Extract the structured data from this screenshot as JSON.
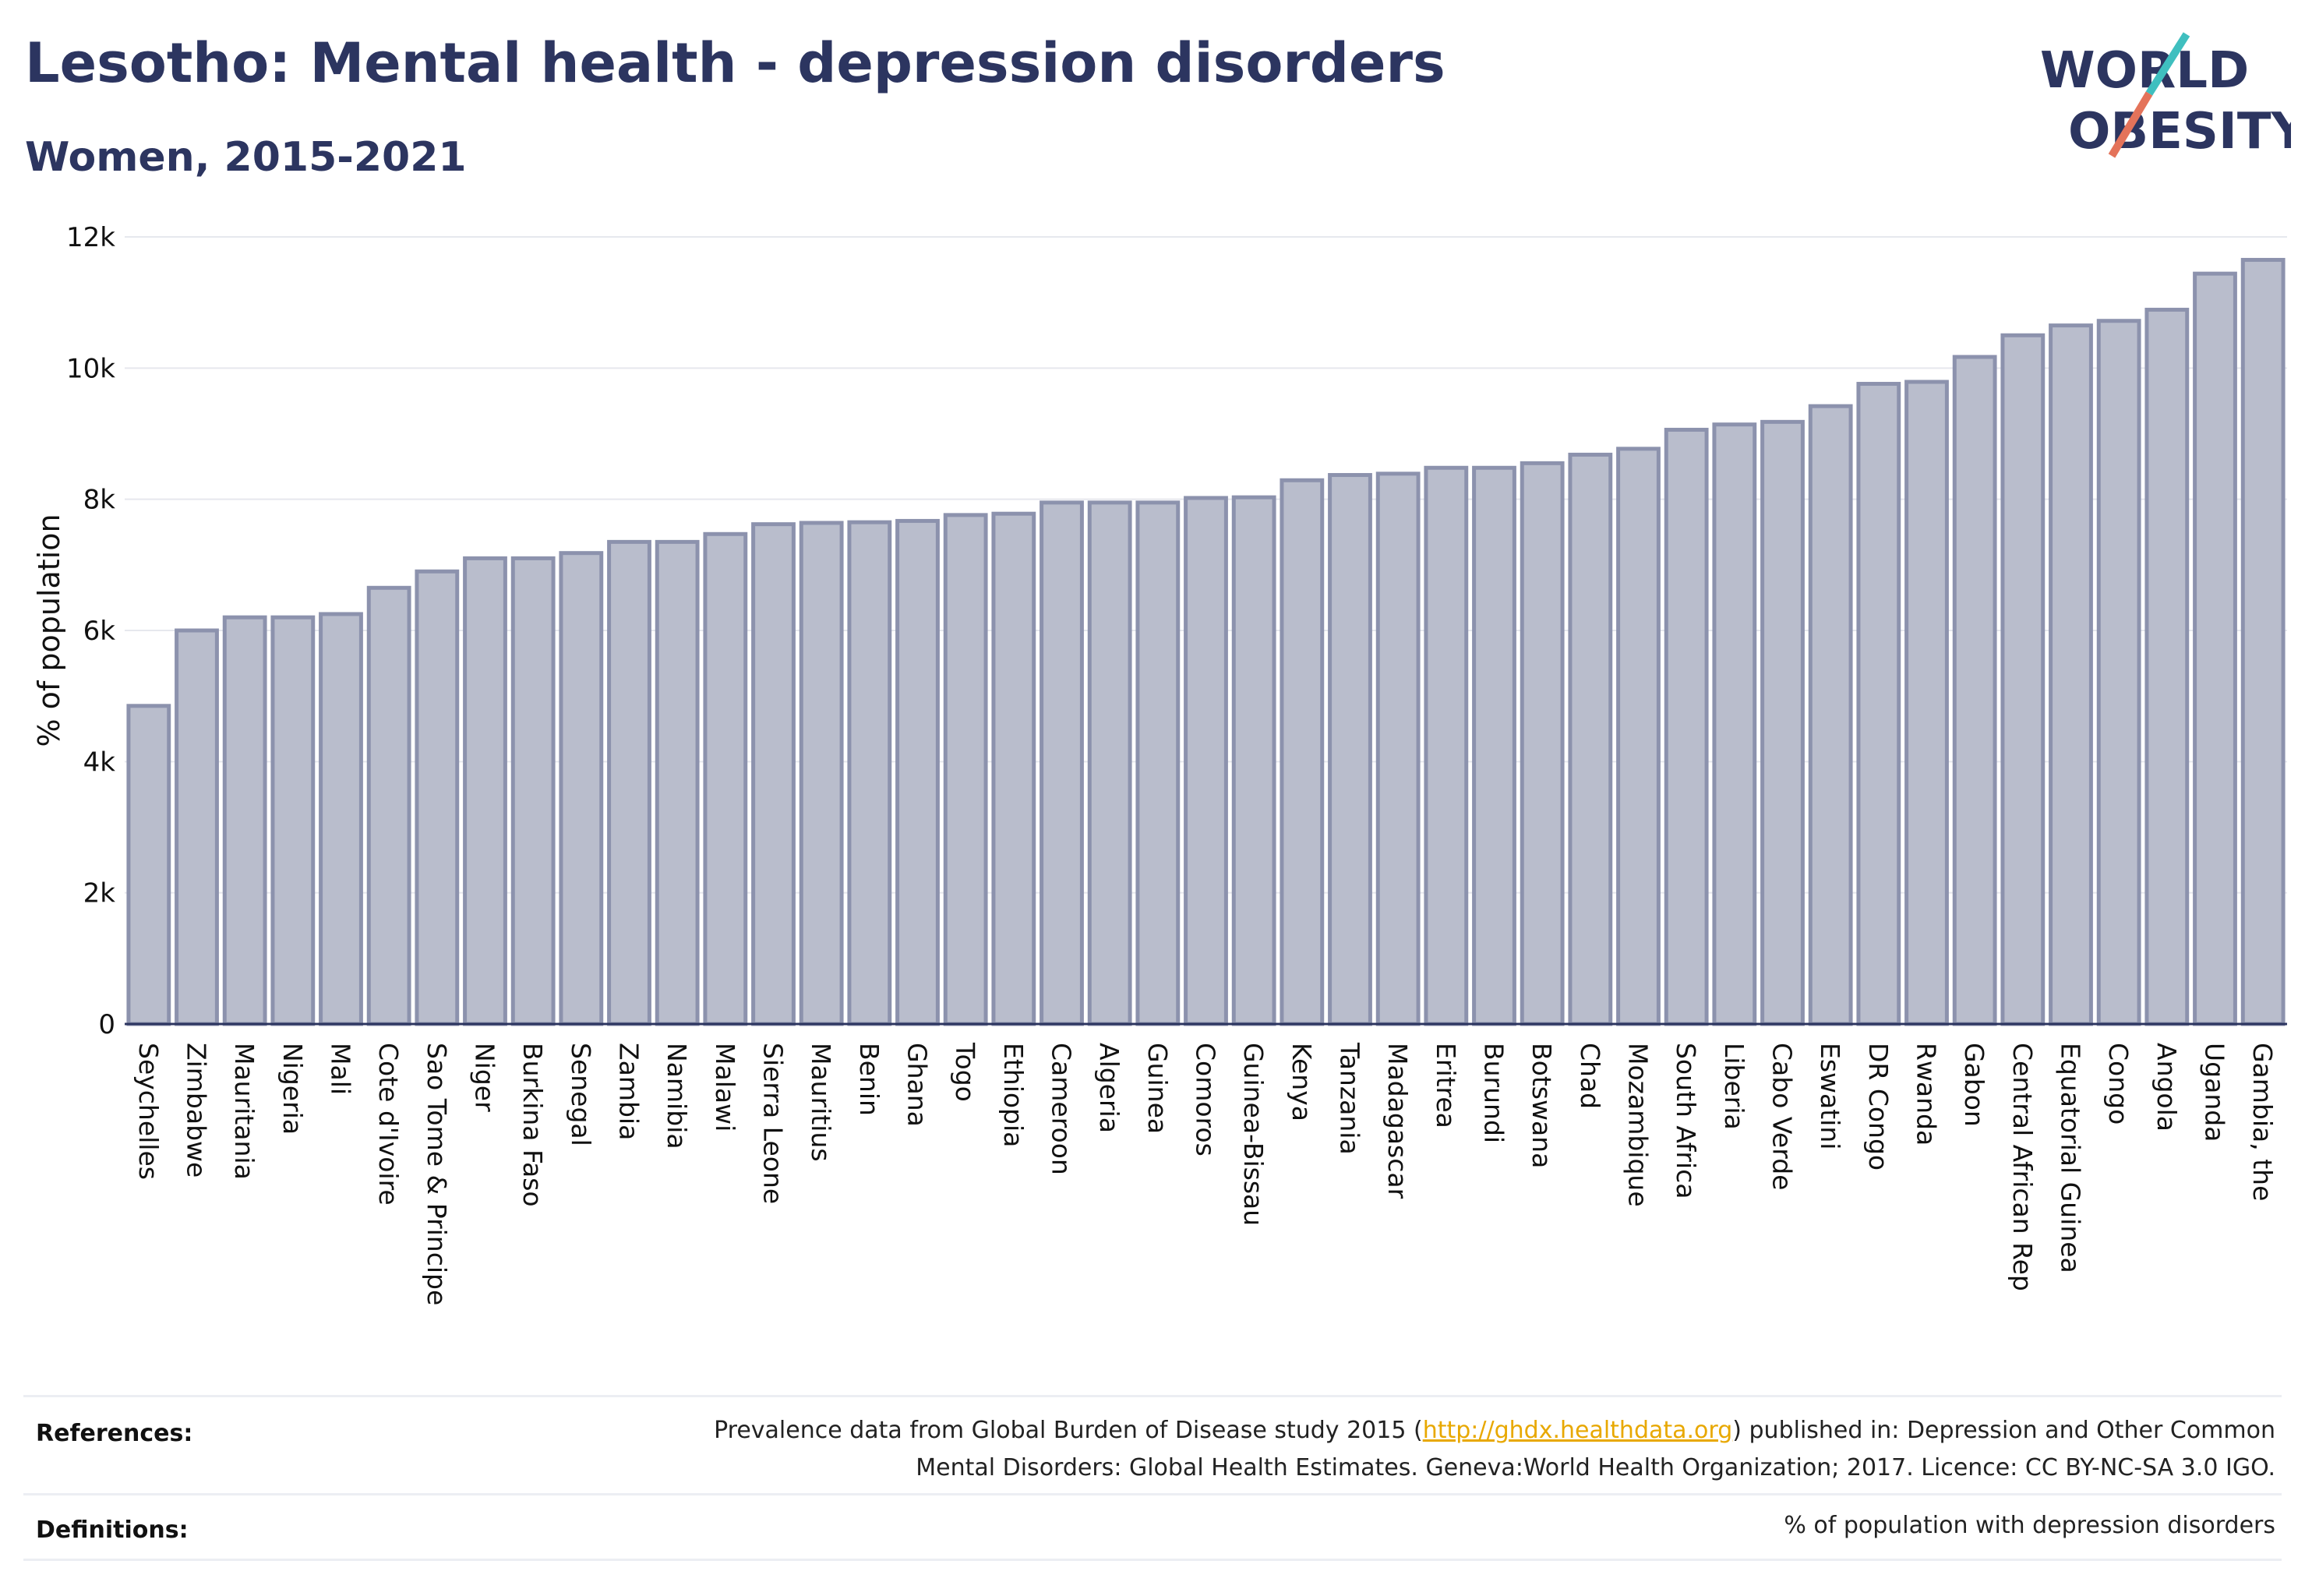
{
  "header": {
    "title": "Lesotho: Mental health - depression disorders",
    "subtitle": "Women, 2015-2021"
  },
  "logo": {
    "line1": "WORLD",
    "line2": "OBESITY"
  },
  "colors": {
    "title": "#2c3560",
    "bar_fill": "#b9bdcc",
    "bar_stroke": "#8c92ad",
    "grid": "#e6e8ee",
    "axis": "#2c3560",
    "link": "#e8a800",
    "logo_teal": "#3fbfbf",
    "logo_coral": "#e4735a"
  },
  "chart_data": {
    "type": "bar",
    "ylabel": "% of population",
    "ylim": [
      0,
      12000
    ],
    "yticks": [
      0,
      2000,
      4000,
      6000,
      8000,
      10000,
      12000
    ],
    "ytick_labels": [
      "0",
      "2k",
      "4k",
      "6k",
      "8k",
      "10k",
      "12k"
    ],
    "grid": true,
    "categories": [
      "Seychelles",
      "Zimbabwe",
      "Mauritania",
      "Nigeria",
      "Mali",
      "Cote d'Ivoire",
      "Sao Tome & Principe",
      "Niger",
      "Burkina Faso",
      "Senegal",
      "Zambia",
      "Namibia",
      "Malawi",
      "Sierra Leone",
      "Mauritius",
      "Benin",
      "Ghana",
      "Togo",
      "Ethiopia",
      "Cameroon",
      "Algeria",
      "Guinea",
      "Comoros",
      "Guinea-Bissau",
      "Kenya",
      "Tanzania",
      "Madagascar",
      "Eritrea",
      "Burundi",
      "Botswana",
      "Chad",
      "Mozambique",
      "South Africa",
      "Liberia",
      "Cabo Verde",
      "Eswatini",
      "DR Congo",
      "Rwanda",
      "Gabon",
      "Central African Rep",
      "Equatorial Guinea",
      "Congo",
      "Angola",
      "Uganda",
      "Gambia, the"
    ],
    "values": [
      4850,
      6000,
      6200,
      6200,
      6250,
      6650,
      6900,
      7100,
      7100,
      7180,
      7350,
      7350,
      7470,
      7620,
      7640,
      7650,
      7670,
      7760,
      7780,
      7950,
      7950,
      7950,
      8020,
      8030,
      8290,
      8370,
      8390,
      8480,
      8480,
      8550,
      8680,
      8770,
      9060,
      9140,
      9180,
      9420,
      9760,
      9790,
      10170,
      10500,
      10650,
      10720,
      10890,
      11440,
      11650
    ]
  },
  "footer": {
    "references_label": "References:",
    "references_text_before": "Prevalence data from Global Burden of Disease study 2015 (",
    "references_link": "http://ghdx.healthdata.org",
    "references_text_after": ") published in: Depression and Other Common Mental Disorders: Global Health Estimates. Geneva:World Health Organization; 2017. Licence: CC BY-NC-SA 3.0 IGO.",
    "definitions_label": "Definitions:",
    "definitions_text": "% of population with depression disorders"
  }
}
